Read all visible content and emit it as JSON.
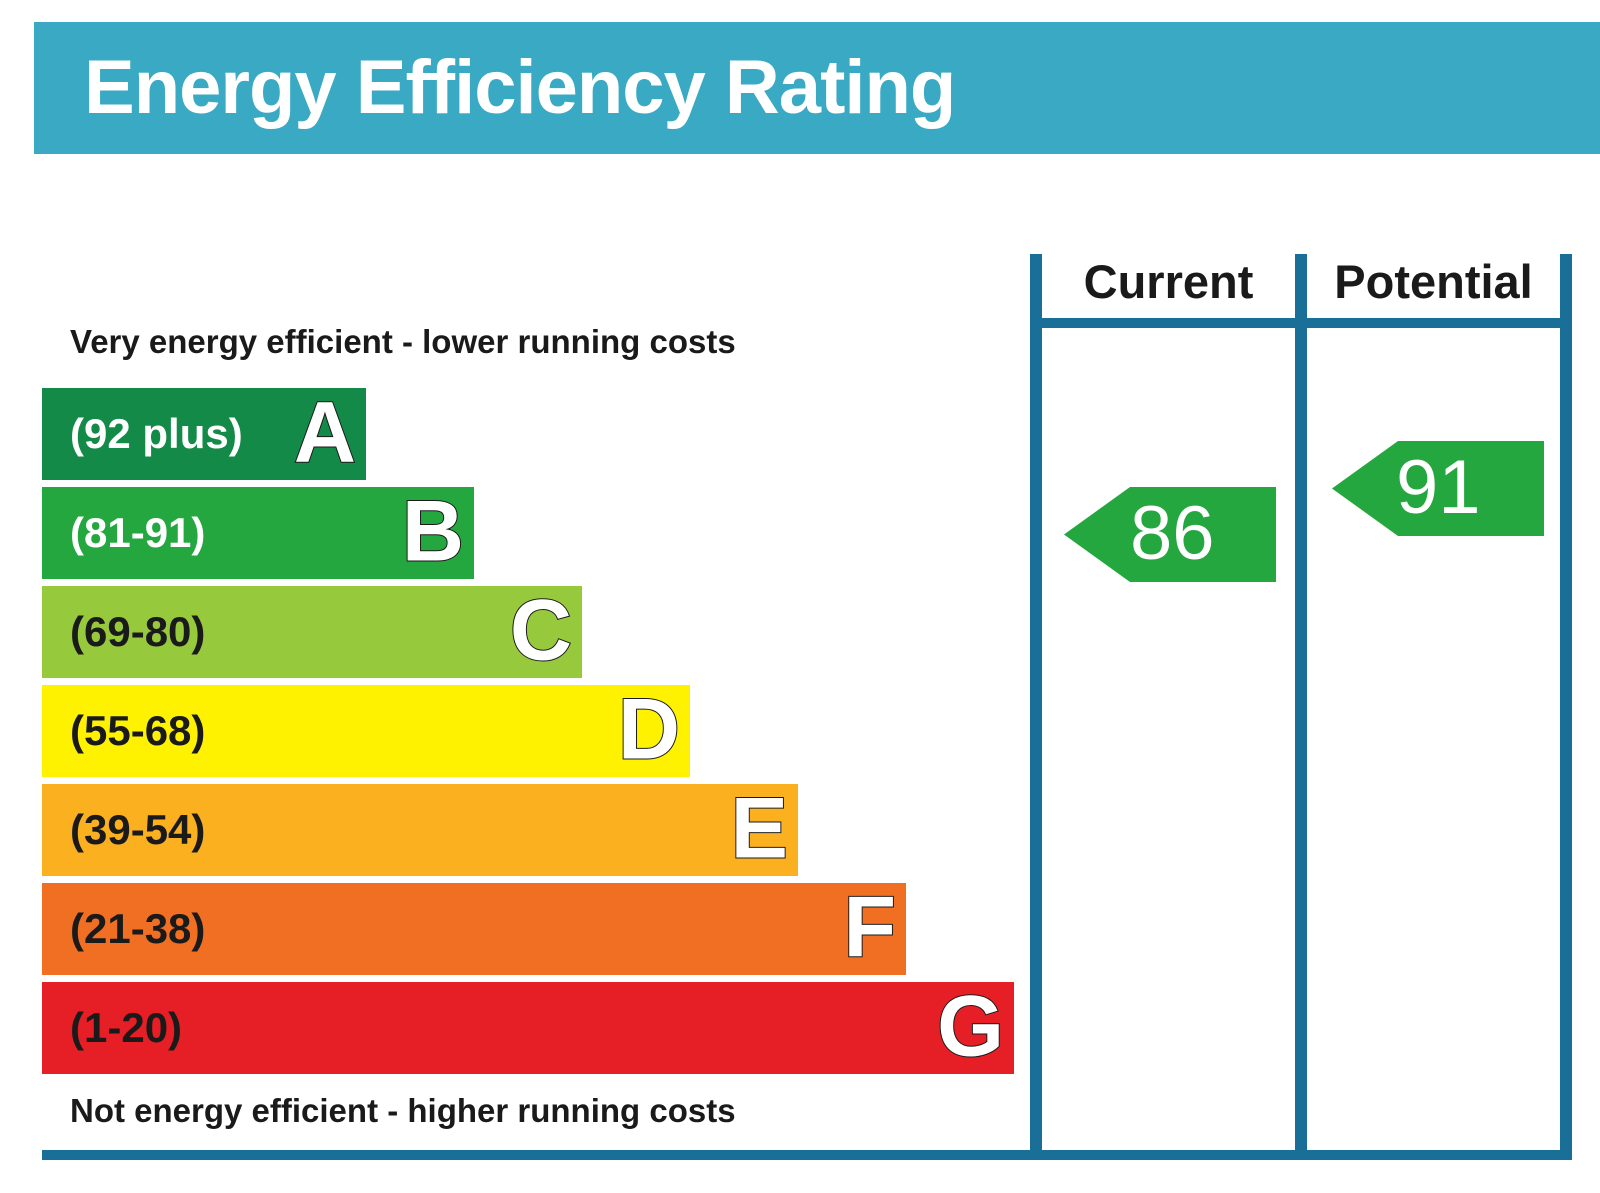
{
  "chart_data": {
    "type": "bar",
    "title": "Energy Efficiency Rating",
    "top_caption": "Very energy efficient - lower running costs",
    "bottom_caption": "Not energy efficient - higher running costs",
    "bands": [
      {
        "letter": "A",
        "range": "(92 plus)",
        "color": "#138a47",
        "text_color": "#ffffff"
      },
      {
        "letter": "B",
        "range": "(81-91)",
        "color": "#23a73e",
        "text_color": "#ffffff"
      },
      {
        "letter": "C",
        "range": "(69-80)",
        "color": "#97c93c",
        "text_color": "#1a1a1a"
      },
      {
        "letter": "D",
        "range": "(55-68)",
        "color": "#fff200",
        "text_color": "#1a1a1a"
      },
      {
        "letter": "E",
        "range": "(39-54)",
        "color": "#fbb020",
        "text_color": "#1a1a1a"
      },
      {
        "letter": "F",
        "range": "(21-38)",
        "color": "#f06f23",
        "text_color": "#1a1a1a"
      },
      {
        "letter": "G",
        "range": "(1-20)",
        "color": "#e51f25",
        "text_color": "#1a1a1a"
      }
    ],
    "columns": [
      {
        "label": "Current",
        "value": 86,
        "band": "B",
        "color": "#23a73e"
      },
      {
        "label": "Potential",
        "value": 91,
        "band": "B",
        "color": "#23a73e"
      }
    ]
  },
  "colors": {
    "header": "#3aaac4",
    "frame": "#1a6f99"
  }
}
